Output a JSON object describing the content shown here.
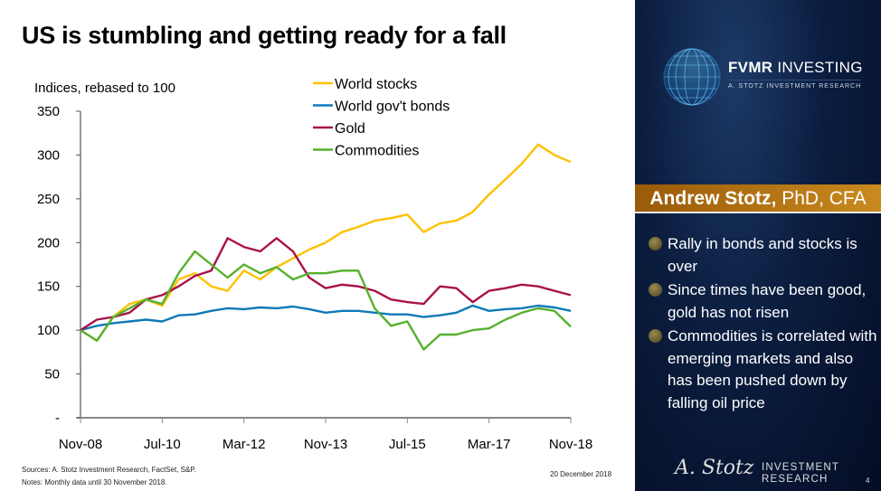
{
  "title": "US is stumbling and getting ready for a fall",
  "chart_data": {
    "type": "line",
    "ylabel": "Indices, rebased to 100",
    "ylim": [
      0,
      350
    ],
    "yticks": [
      0,
      50,
      100,
      150,
      200,
      250,
      300,
      350
    ],
    "ytick_labels": [
      "-",
      "50",
      "100",
      "150",
      "200",
      "250",
      "300",
      "350"
    ],
    "x_start": "Nov-08",
    "x_end": "Nov-18",
    "x_step_months": 4,
    "xtick_labels": [
      "Nov-08",
      "Jul-10",
      "Mar-12",
      "Nov-13",
      "Jul-15",
      "Mar-17",
      "Nov-18"
    ],
    "grid": false,
    "legend": "top-center",
    "series": [
      {
        "name": "World stocks",
        "color": "#FFC000",
        "values": [
          100,
          88,
          115,
          130,
          135,
          128,
          158,
          165,
          150,
          145,
          168,
          158,
          172,
          182,
          192,
          200,
          212,
          218,
          225,
          228,
          232,
          212,
          222,
          225,
          235,
          255,
          272,
          290,
          312,
          300,
          292
        ]
      },
      {
        "name": "World gov't bonds",
        "color": "#0E7AB8",
        "values": [
          100,
          105,
          108,
          110,
          112,
          110,
          117,
          118,
          122,
          125,
          124,
          126,
          125,
          127,
          124,
          120,
          122,
          122,
          120,
          118,
          118,
          115,
          117,
          120,
          128,
          122,
          124,
          125,
          128,
          126,
          122
        ]
      },
      {
        "name": "Gold",
        "color": "#A8124A",
        "values": [
          100,
          112,
          115,
          120,
          135,
          140,
          150,
          162,
          168,
          205,
          195,
          190,
          205,
          190,
          160,
          148,
          152,
          150,
          145,
          135,
          132,
          130,
          150,
          148,
          132,
          145,
          148,
          152,
          150,
          145,
          140
        ]
      },
      {
        "name": "Commodities",
        "color": "#56B02D",
        "values": [
          100,
          88,
          115,
          125,
          135,
          130,
          165,
          190,
          175,
          160,
          175,
          165,
          172,
          158,
          165,
          165,
          168,
          168,
          125,
          105,
          110,
          78,
          95,
          95,
          100,
          102,
          112,
          120,
          125,
          122,
          104
        ]
      }
    ]
  },
  "footer": {
    "sources": "Sources: A. Stotz Investment Research, FactSet, S&P.",
    "notes": "Notes: Monthly data until 30 November 2018.",
    "date": "20 December 2018"
  },
  "panel": {
    "brand_bold": "FVMR",
    "brand_rest": " INVESTING",
    "brand_sub": "A. STOTZ INVESTMENT RESEARCH",
    "author_bold": "Andrew Stotz,",
    "author_rest": " PhD, CFA",
    "bullets": [
      "Rally in bonds and stocks is over",
      "Since times have been good, gold has not risen",
      "Commodities is correlated with emerging markets and also has been pushed down by falling oil price"
    ],
    "signature": "A. Stotz",
    "ir_line1": "INVESTMENT",
    "ir_line2": "RESEARCH",
    "page": "4"
  }
}
